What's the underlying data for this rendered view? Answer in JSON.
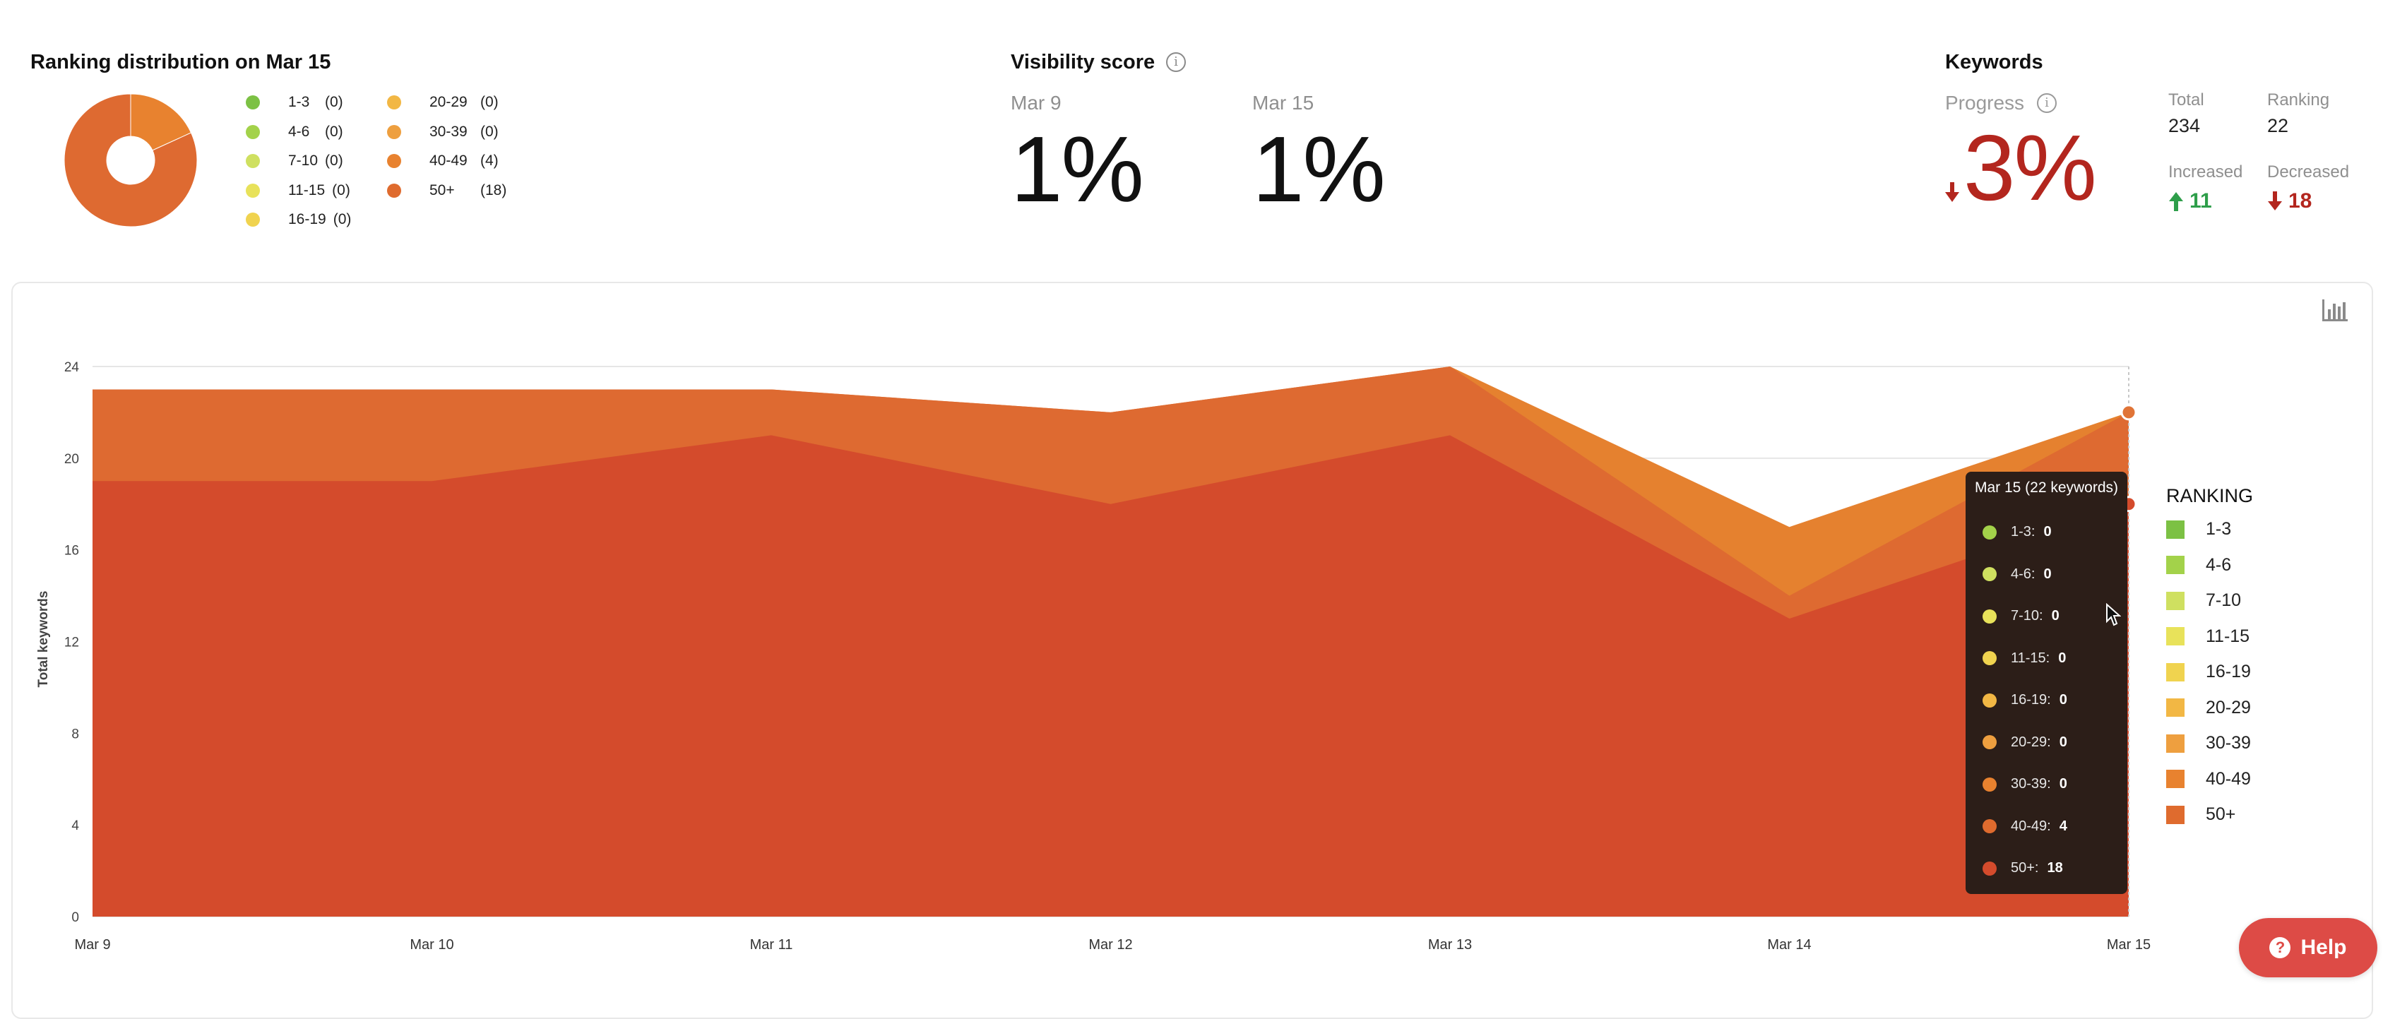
{
  "ranking_distribution": {
    "title": "Ranking distribution on Mar 15",
    "legend": [
      {
        "label": "1-3",
        "count": "(0)",
        "color": "#7cc144",
        "value": 0
      },
      {
        "label": "4-6",
        "count": "(0)",
        "color": "#a3d24a",
        "value": 0
      },
      {
        "label": "7-10",
        "count": "(0)",
        "color": "#cfe060",
        "value": 0
      },
      {
        "label": "11-15",
        "count": "(0)",
        "color": "#e8e25a",
        "value": 0
      },
      {
        "label": "16-19",
        "count": "(0)",
        "color": "#f0d34f",
        "value": 0
      },
      {
        "label": "20-29",
        "count": "(0)",
        "color": "#f2b744",
        "value": 0
      },
      {
        "label": "30-39",
        "count": "(0)",
        "color": "#ee9f3f",
        "value": 0
      },
      {
        "label": "40-49",
        "count": "(4)",
        "color": "#e8822f",
        "value": 4
      },
      {
        "label": "50+",
        "count": "(18)",
        "color": "#df6b2e",
        "value": 18
      }
    ]
  },
  "visibility": {
    "title": "Visibility score",
    "info_icon": "info-icon",
    "start_date": "Mar 9",
    "start_value": "1%",
    "end_date": "Mar 15",
    "end_value": "1%"
  },
  "keywords": {
    "title": "Keywords",
    "progress_label": "Progress",
    "progress_value": "3%",
    "progress_direction": "down",
    "total_label": "Total",
    "total_value": "234",
    "ranking_label": "Ranking",
    "ranking_value": "22",
    "increased_label": "Increased",
    "increased_value": "11",
    "decreased_label": "Decreased",
    "decreased_value": "18",
    "colors": {
      "up": "#2e9e4a",
      "down": "#b3261e"
    }
  },
  "chart_data": {
    "type": "area",
    "stacked": true,
    "ylabel": "Total keywords",
    "ylim": [
      0,
      24
    ],
    "yticks": [
      "0",
      "4",
      "8",
      "12",
      "16",
      "20",
      "24"
    ],
    "x": [
      "Mar 9",
      "Mar 10",
      "Mar 11",
      "Mar 12",
      "Mar 13",
      "Mar 14",
      "Mar 15"
    ],
    "grid": true,
    "series": [
      {
        "name": "50+",
        "color": "#d44b2c",
        "values": [
          19,
          19,
          21,
          18,
          21,
          13,
          18
        ]
      },
      {
        "name": "40-49",
        "color": "#de6a31",
        "values": [
          4,
          4,
          2,
          4,
          3,
          1,
          4
        ]
      },
      {
        "name": "30-39",
        "color": "#e5812f",
        "values": [
          0,
          0,
          0,
          0,
          0,
          3,
          0
        ]
      }
    ],
    "legend_title": "RANKING",
    "legend_position": "right",
    "legend": [
      {
        "label": "1-3",
        "color": "#7cc144"
      },
      {
        "label": "4-6",
        "color": "#a3d24a"
      },
      {
        "label": "7-10",
        "color": "#cfe060"
      },
      {
        "label": "11-15",
        "color": "#e8e25a"
      },
      {
        "label": "16-19",
        "color": "#f0d34f"
      },
      {
        "label": "20-29",
        "color": "#f2b744"
      },
      {
        "label": "30-39",
        "color": "#ee9f3f"
      },
      {
        "label": "40-49",
        "color": "#e8822f"
      },
      {
        "label": "50+",
        "color": "#df6b2e"
      }
    ]
  },
  "tooltip": {
    "title": "Mar 15 (22 keywords)",
    "rows": [
      {
        "label": "1-3:",
        "value": "0",
        "color": "#a3d24a"
      },
      {
        "label": "4-6:",
        "value": "0",
        "color": "#cfe060"
      },
      {
        "label": "7-10:",
        "value": "0",
        "color": "#e8e25a"
      },
      {
        "label": "11-15:",
        "value": "0",
        "color": "#f0d34f"
      },
      {
        "label": "16-19:",
        "value": "0",
        "color": "#f2b744"
      },
      {
        "label": "20-29:",
        "value": "0",
        "color": "#ee9f3f"
      },
      {
        "label": "30-39:",
        "value": "0",
        "color": "#e8822f"
      },
      {
        "label": "40-49:",
        "value": "4",
        "color": "#df6b2e"
      },
      {
        "label": "50+:",
        "value": "18",
        "color": "#d44b2c"
      }
    ]
  },
  "help": {
    "label": "Help",
    "icon": "question-icon"
  },
  "chart_settings": {
    "icon": "chart-settings-icon"
  }
}
